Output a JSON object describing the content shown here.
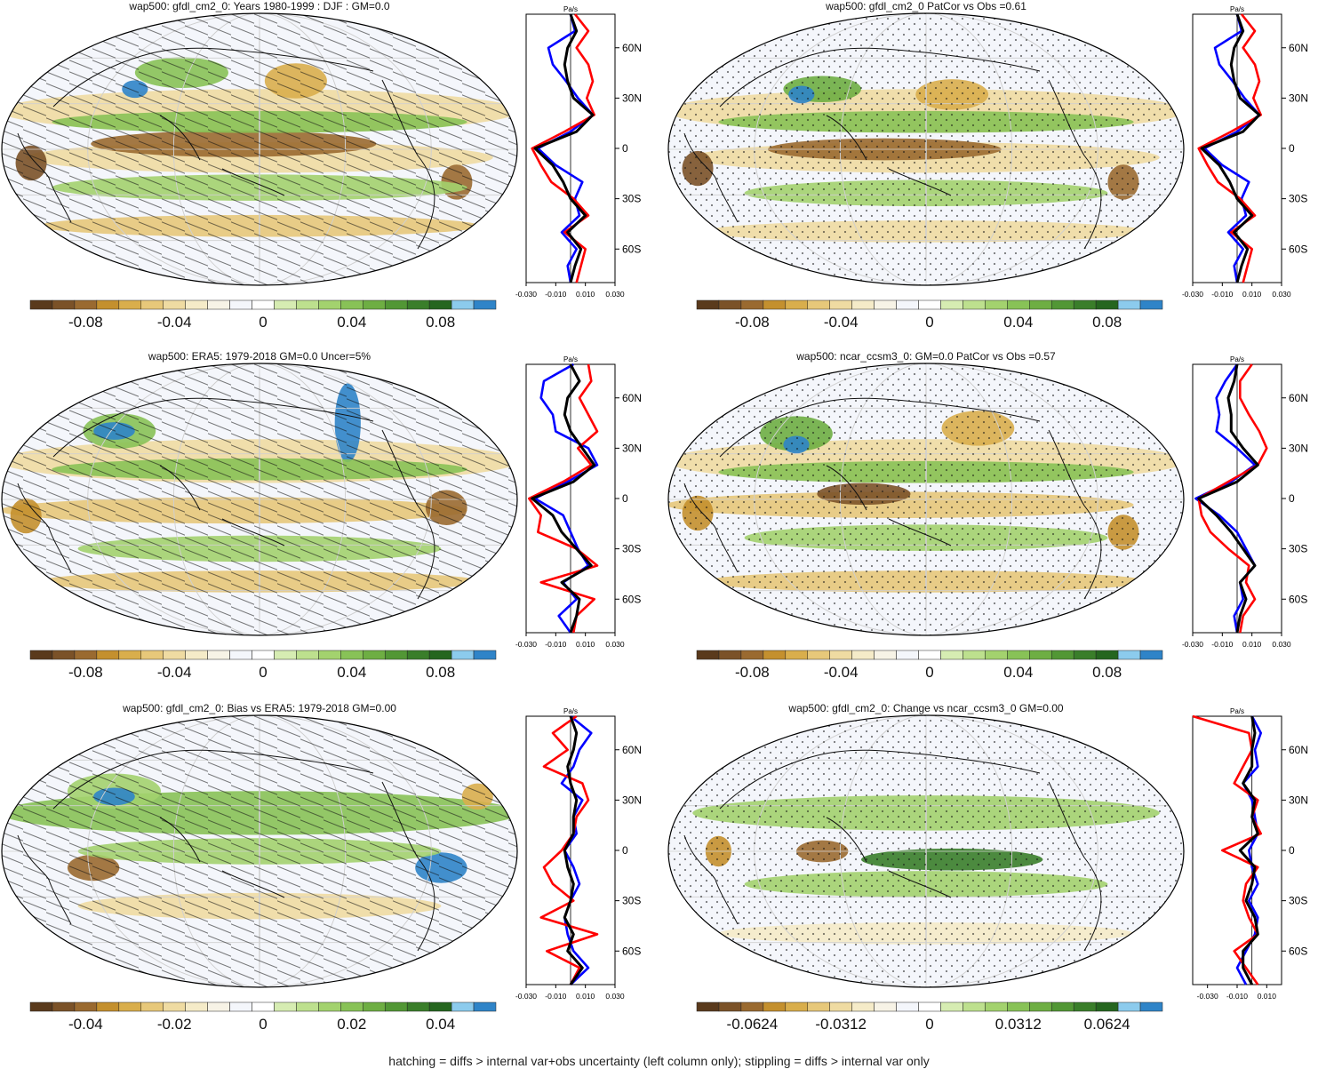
{
  "footer": "hatching = diffs > internal var+obs uncertainty (left column only); stippling = diffs > internal var only",
  "colors": {
    "palette": [
      "#5a3a1c",
      "#7b5228",
      "#9a6a30",
      "#c4902e",
      "#d9ae4c",
      "#e7c87a",
      "#efdba2",
      "#f5ebc8",
      "#f7f3e6",
      "#f4f6fb",
      "#ffffff",
      "#d6ecb2",
      "#bde08e",
      "#a3d26e",
      "#88c257",
      "#6eae43",
      "#529735",
      "#3a7e2a",
      "#25661f",
      "#8ccbed",
      "#2f84c8"
    ],
    "profile_model": "#0000ff",
    "profile_obs_a": "#ff0000",
    "profile_obs_b": "#000000"
  },
  "panels": [
    {
      "title": "wap500: gfdl_cm2_0: Years 1980-1999 : DJF : GM=0.0",
      "colorbar_labels": [
        "-0.08",
        "-0.04",
        "0",
        "0.04",
        "0.08"
      ],
      "pattern": "hatch",
      "profile": {
        "unit": "Pa/s",
        "xticks": [
          "-0.030",
          "-0.010",
          "0.010",
          "0.030"
        ],
        "xlim": [
          -0.03,
          0.03
        ],
        "lat_labels": [
          "60N",
          "30N",
          "0",
          "30S",
          "60S"
        ]
      }
    },
    {
      "title": "wap500: gfdl_cm2_0 PatCor vs Obs =0.61",
      "colorbar_labels": [
        "-0.08",
        "-0.04",
        "0",
        "0.04",
        "0.08"
      ],
      "pattern": "stipple",
      "profile": {
        "unit": "Pa/s",
        "xticks": [
          "-0.030",
          "-0.010",
          "0.010",
          "0.030"
        ],
        "xlim": [
          -0.03,
          0.03
        ],
        "lat_labels": [
          "60N",
          "30N",
          "0",
          "30S",
          "60S"
        ]
      }
    },
    {
      "title": "wap500: ERA5: 1979-2018 GM=0.0 Uncer=5%",
      "colorbar_labels": [
        "-0.08",
        "-0.04",
        "0",
        "0.04",
        "0.08"
      ],
      "pattern": "hatch",
      "profile": {
        "unit": "Pa/s",
        "xticks": [
          "-0.030",
          "-0.010",
          "0.010",
          "0.030"
        ],
        "xlim": [
          -0.03,
          0.03
        ],
        "lat_labels": [
          "60N",
          "30N",
          "0",
          "30S",
          "60S"
        ]
      }
    },
    {
      "title": "wap500: ncar_ccsm3_0: GM=0.0 PatCor vs Obs =0.57",
      "colorbar_labels": [
        "-0.08",
        "-0.04",
        "0",
        "0.04",
        "0.08"
      ],
      "pattern": "stipple",
      "profile": {
        "unit": "Pa/s",
        "xticks": [
          "-0.030",
          "-0.010",
          "0.010",
          "0.030"
        ],
        "xlim": [
          -0.03,
          0.03
        ],
        "lat_labels": [
          "60N",
          "30N",
          "0",
          "30S",
          "60S"
        ]
      }
    },
    {
      "title": "wap500: gfdl_cm2_0: Bias vs ERA5: 1979-2018 GM=0.00",
      "colorbar_labels": [
        "-0.04",
        "-0.02",
        "0",
        "0.02",
        "0.04"
      ],
      "pattern": "hatch",
      "profile": {
        "unit": "Pa/s",
        "xticks": [
          "-0.030",
          "-0.010",
          "0.010",
          "0.030"
        ],
        "xlim": [
          -0.03,
          0.03
        ],
        "lat_labels": [
          "60N",
          "30N",
          "0",
          "30S",
          "60S"
        ]
      }
    },
    {
      "title": "wap500: gfdl_cm2_0: Change vs ncar_ccsm3_0 GM=0.00",
      "colorbar_labels": [
        "-0.0624",
        "-0.0312",
        "0",
        "0.0312",
        "0.0624"
      ],
      "pattern": "stipple",
      "profile": {
        "unit": "Pa/s",
        "xticks": [
          "-0.030",
          "-0.010",
          "0.010"
        ],
        "xlim": [
          -0.04,
          0.02
        ],
        "lat_labels": [
          "60N",
          "30N",
          "0",
          "30S",
          "60S"
        ]
      }
    }
  ],
  "chart_data": [
    {
      "type": "line",
      "title": "wap500: gfdl_cm2_0: Years 1980-1999 : DJF : GM=0.0",
      "xlabel": "Pa/s",
      "xlim": [
        -0.03,
        0.03
      ],
      "ylim": [
        -80,
        80
      ],
      "y": [
        80,
        70,
        60,
        50,
        40,
        30,
        20,
        10,
        0,
        -10,
        -20,
        -30,
        -40,
        -50,
        -60,
        -70,
        -80
      ],
      "series": [
        {
          "values": [
            0.0,
            0.003,
            -0.015,
            -0.012,
            -0.003,
            0.005,
            0.015,
            0.0,
            -0.022,
            -0.01,
            0.008,
            0.003,
            0.006,
            -0.006,
            0.004,
            -0.002,
            0.0
          ]
        },
        {
          "values": [
            0.003,
            0.012,
            0.004,
            0.012,
            0.015,
            0.011,
            0.016,
            -0.004,
            -0.026,
            -0.02,
            -0.013,
            0.002,
            0.012,
            -0.004,
            0.01,
            0.007,
            0.004
          ]
        },
        {
          "values": [
            0.0,
            0.004,
            -0.002,
            -0.004,
            -0.002,
            0.002,
            0.015,
            0.004,
            -0.024,
            -0.012,
            -0.005,
            0.0,
            0.01,
            -0.002,
            0.007,
            0.003,
            0.0
          ]
        }
      ]
    },
    {
      "type": "line",
      "title": "wap500: gfdl_cm2_0 PatCor vs Obs =0.61",
      "xlabel": "Pa/s",
      "xlim": [
        -0.03,
        0.03
      ],
      "ylim": [
        -80,
        80
      ],
      "y": [
        80,
        70,
        60,
        50,
        40,
        30,
        20,
        10,
        0,
        -10,
        -20,
        -30,
        -40,
        -50,
        -60,
        -70,
        -80
      ],
      "series": [
        {
          "values": [
            0.0,
            0.003,
            -0.015,
            -0.012,
            -0.003,
            0.005,
            0.015,
            0.0,
            -0.022,
            -0.01,
            0.008,
            0.003,
            0.006,
            -0.006,
            0.004,
            -0.002,
            0.0
          ]
        },
        {
          "values": [
            0.003,
            0.012,
            0.004,
            0.012,
            0.015,
            0.011,
            0.016,
            -0.004,
            -0.026,
            -0.02,
            -0.013,
            0.002,
            0.012,
            -0.004,
            0.01,
            0.007,
            0.004
          ]
        },
        {
          "values": [
            0.0,
            0.004,
            -0.002,
            -0.004,
            -0.002,
            0.002,
            0.015,
            0.004,
            -0.024,
            -0.012,
            -0.005,
            0.0,
            0.01,
            -0.002,
            0.007,
            0.003,
            0.0
          ]
        }
      ]
    },
    {
      "type": "line",
      "title": "wap500: ERA5: 1979-2018 GM=0.0 Uncer=5%",
      "xlabel": "Pa/s",
      "xlim": [
        -0.03,
        0.03
      ],
      "ylim": [
        -80,
        80
      ],
      "y": [
        80,
        70,
        60,
        50,
        40,
        30,
        20,
        10,
        0,
        -10,
        -20,
        -30,
        -40,
        -50,
        -60,
        -70,
        -80
      ],
      "series": [
        {
          "values": [
            0.002,
            -0.018,
            -0.02,
            -0.012,
            -0.01,
            0.012,
            0.018,
            -0.002,
            -0.024,
            -0.005,
            0.0,
            0.005,
            0.012,
            -0.005,
            0.004,
            -0.008,
            0.0
          ]
        },
        {
          "values": [
            0.012,
            0.014,
            0.006,
            0.012,
            0.018,
            0.005,
            0.014,
            -0.005,
            -0.028,
            -0.02,
            -0.022,
            0.004,
            0.018,
            -0.02,
            0.016,
            0.004,
            0.002
          ]
        },
        {
          "values": [
            0.0,
            0.006,
            -0.002,
            -0.004,
            0.0,
            0.008,
            0.016,
            0.002,
            -0.026,
            -0.012,
            -0.006,
            0.004,
            0.014,
            -0.006,
            0.006,
            0.004,
            0.0
          ]
        }
      ]
    },
    {
      "type": "line",
      "title": "wap500: ncar_ccsm3_0: GM=0.0 PatCor vs Obs =0.57",
      "xlabel": "Pa/s",
      "xlim": [
        -0.03,
        0.03
      ],
      "ylim": [
        -80,
        80
      ],
      "y": [
        80,
        70,
        60,
        50,
        40,
        30,
        20,
        10,
        0,
        -10,
        -20,
        -30,
        -40,
        -50,
        -60,
        -70,
        -80
      ],
      "series": [
        {
          "values": [
            0.0,
            -0.008,
            -0.014,
            -0.012,
            -0.014,
            0.0,
            0.012,
            -0.004,
            -0.028,
            -0.012,
            0.0,
            0.006,
            0.012,
            0.002,
            0.004,
            -0.002,
            0.0
          ]
        },
        {
          "values": [
            0.01,
            0.002,
            0.002,
            0.008,
            0.015,
            0.02,
            0.014,
            -0.006,
            -0.026,
            -0.024,
            -0.018,
            -0.006,
            0.008,
            0.006,
            0.012,
            0.004,
            0.002
          ]
        },
        {
          "values": [
            0.0,
            -0.002,
            -0.006,
            -0.004,
            -0.004,
            0.004,
            0.014,
            0.0,
            -0.026,
            -0.014,
            -0.004,
            0.004,
            0.012,
            0.002,
            0.006,
            0.002,
            0.0
          ]
        }
      ]
    },
    {
      "type": "line",
      "title": "wap500: gfdl_cm2_0: Bias vs ERA5: 1979-2018 GM=0.00",
      "xlabel": "Pa/s",
      "xlim": [
        -0.03,
        0.03
      ],
      "ylim": [
        -80,
        80
      ],
      "y": [
        80,
        70,
        60,
        50,
        40,
        30,
        20,
        10,
        0,
        -10,
        -20,
        -30,
        -40,
        -50,
        -60,
        -70,
        -80
      ],
      "series": [
        {
          "values": [
            0.0,
            0.014,
            0.006,
            0.002,
            -0.006,
            0.008,
            0.002,
            0.004,
            -0.004,
            0.002,
            0.006,
            0.0,
            -0.004,
            -0.002,
            0.002,
            0.012,
            0.0
          ]
        },
        {
          "values": [
            0.004,
            -0.012,
            -0.002,
            -0.018,
            0.008,
            0.012,
            0.004,
            0.002,
            -0.006,
            -0.018,
            -0.012,
            0.002,
            -0.02,
            0.018,
            -0.016,
            0.006,
            0.0
          ]
        },
        {
          "values": [
            0.0,
            0.004,
            0.002,
            -0.002,
            0.0,
            0.004,
            0.002,
            0.002,
            -0.004,
            -0.002,
            0.002,
            0.0,
            -0.004,
            0.002,
            -0.002,
            0.008,
            0.0
          ]
        }
      ]
    },
    {
      "type": "line",
      "title": "wap500: gfdl_cm2_0: Change vs ncar_ccsm3_0 GM=0.00",
      "xlabel": "Pa/s",
      "xlim": [
        -0.04,
        0.02
      ],
      "ylim": [
        -80,
        80
      ],
      "y": [
        80,
        70,
        60,
        50,
        40,
        30,
        20,
        10,
        0,
        -10,
        -20,
        -30,
        -40,
        -50,
        -60,
        -70,
        -80
      ],
      "series": [
        {
          "values": [
            0.0,
            0.006,
            0.002,
            0.004,
            -0.006,
            0.0,
            0.002,
            0.004,
            -0.002,
            0.0,
            0.004,
            -0.002,
            0.004,
            0.002,
            -0.004,
            -0.01,
            -0.004
          ]
        },
        {
          "values": [
            -0.04,
            -0.002,
            0.0,
            -0.006,
            -0.012,
            0.004,
            0.0,
            0.006,
            -0.02,
            0.004,
            -0.004,
            -0.006,
            -0.002,
            0.004,
            -0.012,
            -0.004,
            0.004
          ]
        },
        {
          "values": [
            0.0,
            0.002,
            0.0,
            0.0,
            -0.006,
            0.002,
            0.0,
            0.004,
            -0.008,
            0.002,
            0.0,
            -0.004,
            0.002,
            0.004,
            -0.006,
            -0.006,
            0.0
          ]
        }
      ]
    }
  ]
}
